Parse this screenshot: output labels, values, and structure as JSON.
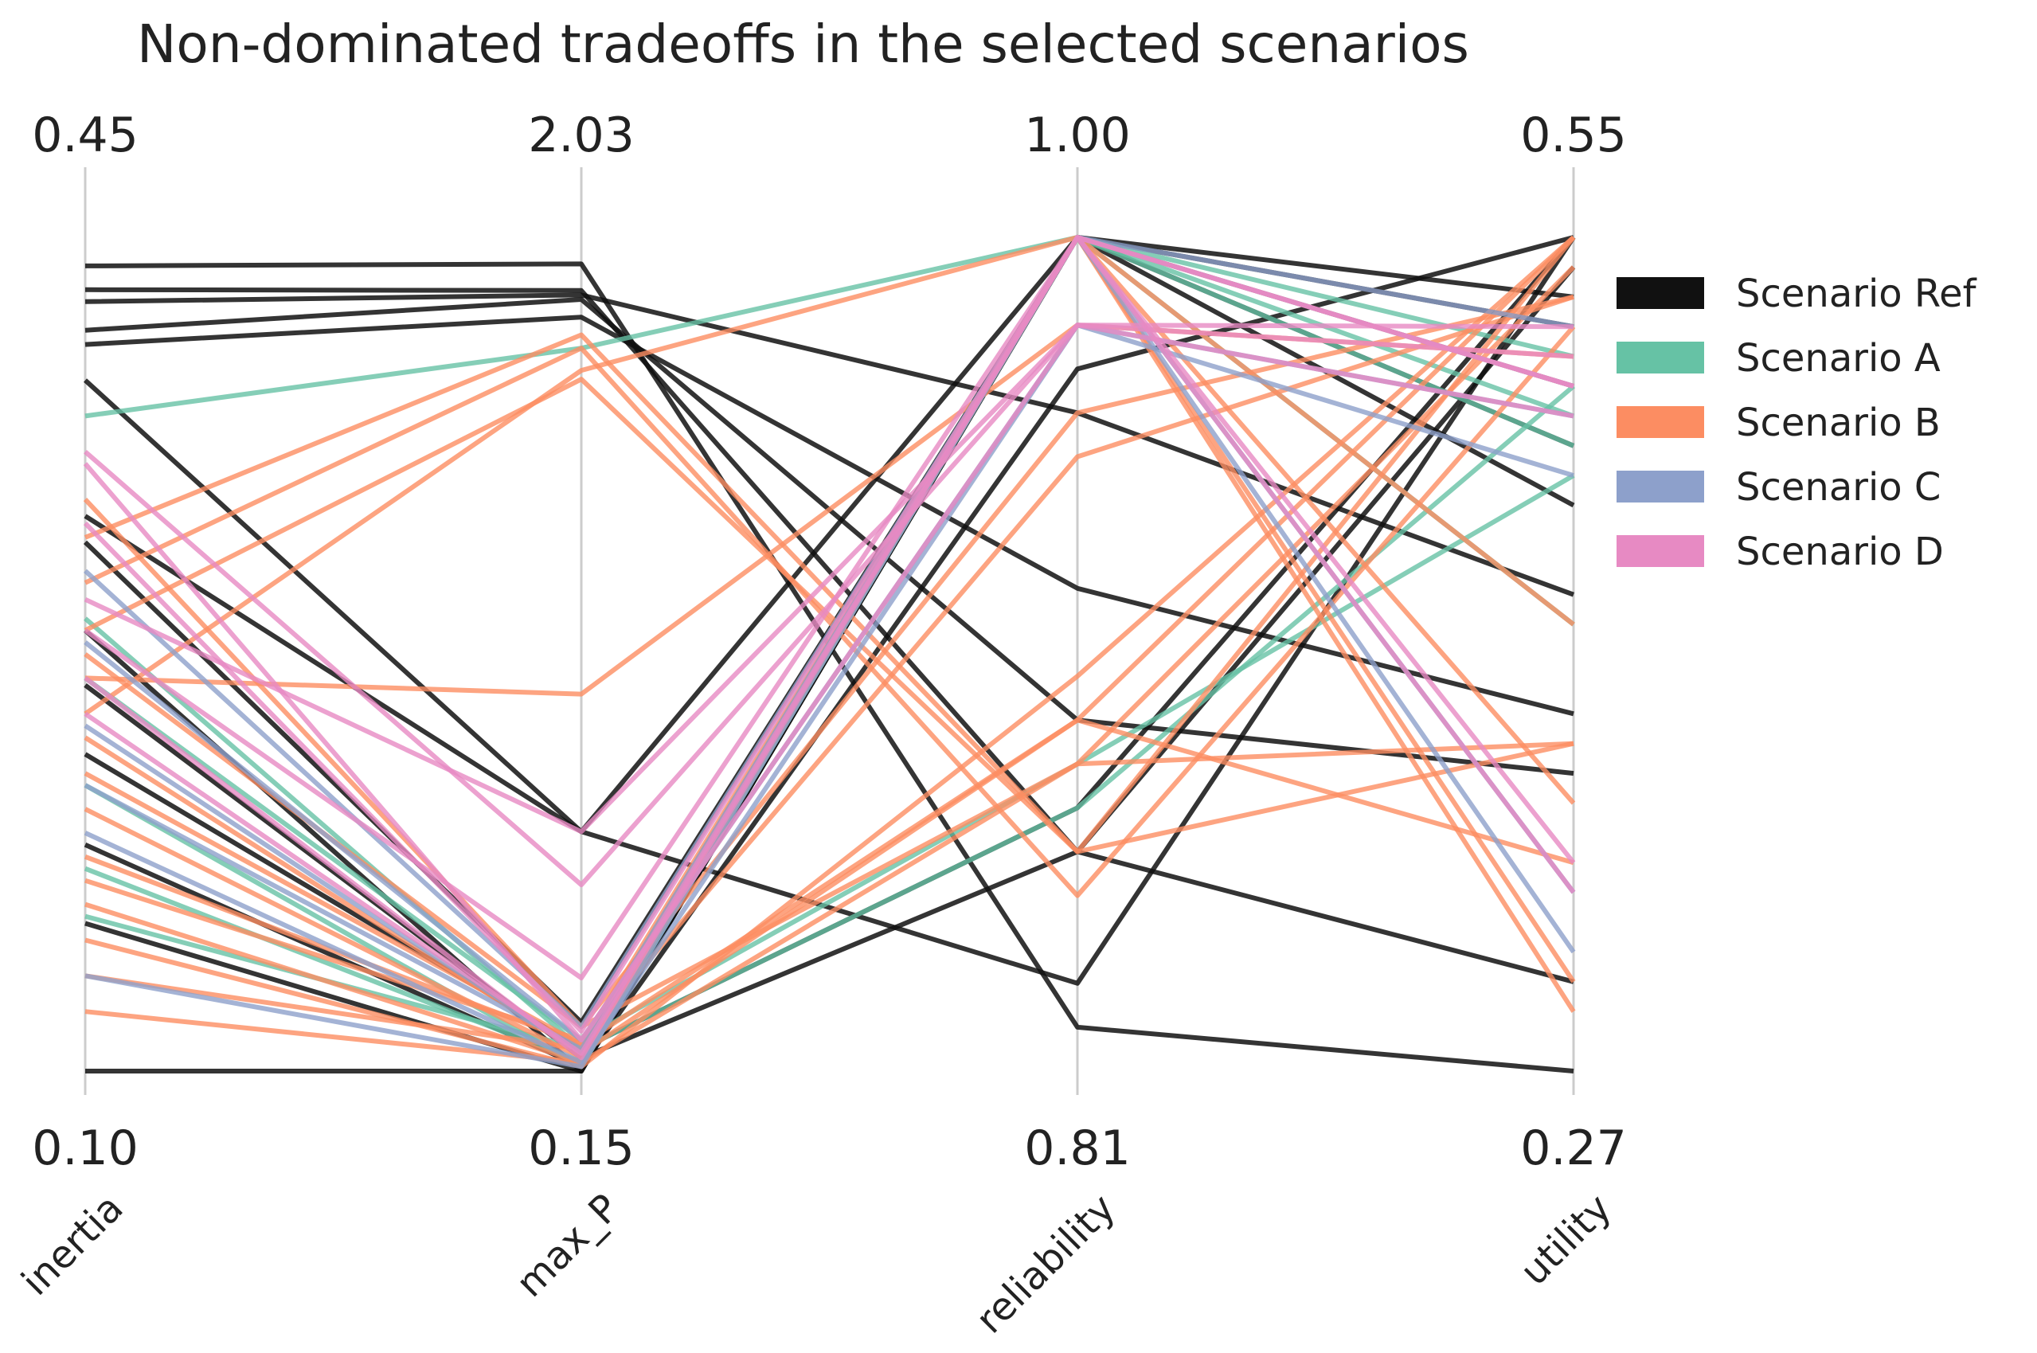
{
  "chart_data": {
    "type": "parallel_coordinates",
    "title": "Non-dominated tradeoffs in the selected scenarios",
    "axes": [
      {
        "name": "inertia",
        "min": 0.1,
        "max": 0.45,
        "min_label": "0.10",
        "max_label": "0.45"
      },
      {
        "name": "max_P",
        "min": 0.15,
        "max": 2.03,
        "min_label": "0.15",
        "max_label": "2.03"
      },
      {
        "name": "reliability",
        "min": 0.81,
        "max": 1.0,
        "min_label": "0.81",
        "max_label": "1.00"
      },
      {
        "name": "utility",
        "min": 0.27,
        "max": 0.55,
        "min_label": "0.27",
        "max_label": "0.55"
      }
    ],
    "legend_placement": "upper-right, outside plot",
    "grid": false,
    "series": [
      {
        "name": "Scenario Ref",
        "color": "#111111",
        "lines": [
          [
            0.438,
            1.97,
            0.82,
            0.27
          ],
          [
            0.428,
            1.91,
            0.86,
            0.3
          ],
          [
            0.423,
            1.9,
            0.96,
            0.43
          ],
          [
            0.411,
            1.89,
            0.89,
            0.37
          ],
          [
            0.405,
            1.85,
            0.92,
            0.39
          ],
          [
            0.39,
            0.69,
            0.83,
            0.55
          ],
          [
            0.333,
            0.69,
            1.0,
            0.46
          ],
          [
            0.322,
            0.26,
            1.0,
            0.5
          ],
          [
            0.285,
            0.15,
            1.0,
            0.52
          ],
          [
            0.262,
            0.18,
            0.86,
            0.54
          ],
          [
            0.233,
            0.2,
            0.87,
            0.55
          ],
          [
            0.195,
            0.16,
            0.97,
            0.55
          ],
          [
            0.162,
            0.15,
            1.0,
            0.48
          ],
          [
            0.1,
            0.15,
            1.0,
            0.53
          ]
        ]
      },
      {
        "name": "Scenario A",
        "color": "#66c2a5",
        "lines": [
          [
            0.375,
            1.78,
            1.0,
            0.48
          ],
          [
            0.29,
            0.2,
            0.87,
            0.5
          ],
          [
            0.265,
            0.22,
            0.88,
            0.47
          ],
          [
            0.22,
            0.16,
            1.0,
            0.51
          ],
          [
            0.185,
            0.17,
            1.0,
            0.42
          ],
          [
            0.165,
            0.2,
            1.0,
            0.49
          ]
        ]
      },
      {
        "name": "Scenario B",
        "color": "#fc8d62",
        "lines": [
          [
            0.324,
            1.81,
            0.86,
            0.38
          ],
          [
            0.305,
            1.78,
            0.85,
            0.52
          ],
          [
            0.285,
            1.71,
            0.86,
            0.55
          ],
          [
            0.265,
            1.0,
            0.98,
            0.51
          ],
          [
            0.25,
            1.73,
            1.0,
            0.5
          ],
          [
            0.34,
            0.25,
            0.96,
            0.53
          ],
          [
            0.275,
            0.25,
            0.88,
            0.54
          ],
          [
            0.24,
            0.19,
            0.89,
            0.34
          ],
          [
            0.225,
            0.21,
            1.0,
            0.29
          ],
          [
            0.21,
            0.18,
            1.0,
            0.36
          ],
          [
            0.19,
            0.21,
            0.89,
            0.55
          ],
          [
            0.18,
            0.22,
            0.95,
            0.53
          ],
          [
            0.17,
            0.17,
            1.0,
            0.42
          ],
          [
            0.155,
            0.16,
            0.9,
            0.55
          ],
          [
            0.14,
            0.2,
            1.0,
            0.3
          ],
          [
            0.125,
            0.17,
            0.88,
            0.38
          ]
        ]
      },
      {
        "name": "Scenario C",
        "color": "#8da0cb",
        "lines": [
          [
            0.31,
            0.25,
            1.0,
            0.52
          ],
          [
            0.28,
            0.22,
            0.98,
            0.47
          ],
          [
            0.245,
            0.19,
            1.0,
            0.31
          ],
          [
            0.22,
            0.2,
            1.0,
            0.5
          ],
          [
            0.2,
            0.17,
            0.98,
            0.49
          ],
          [
            0.14,
            0.16,
            1.0,
            0.33
          ]
        ]
      },
      {
        "name": "Scenario D",
        "color": "#e78ac3",
        "lines": [
          [
            0.36,
            0.57,
            0.98,
            0.52
          ],
          [
            0.355,
            0.22,
            0.98,
            0.49
          ],
          [
            0.33,
            0.24,
            1.0,
            0.5
          ],
          [
            0.298,
            0.69,
            0.98,
            0.51
          ],
          [
            0.285,
            0.36,
            1.0,
            0.33
          ],
          [
            0.265,
            0.18,
            1.0,
            0.5
          ],
          [
            0.25,
            0.19,
            1.0,
            0.34
          ]
        ]
      }
    ]
  }
}
